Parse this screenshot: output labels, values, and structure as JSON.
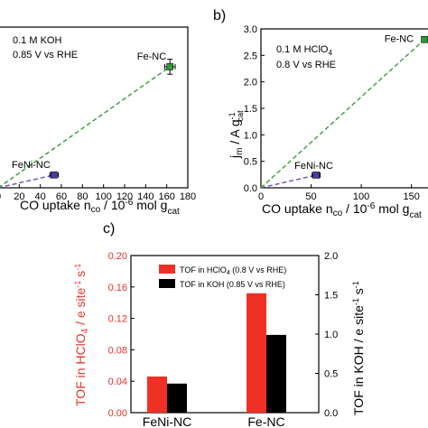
{
  "colors": {
    "trend_green": "#3a9a3a",
    "trend_purple": "#6a4fc0",
    "point_green": "#2f9a3a",
    "point_purple": "#4a3aa8",
    "bar_hclo4": "#ee3124",
    "bar_koh": "#000000",
    "left_axis_text": "#e8342a"
  },
  "chart_data": [
    {
      "id": "a",
      "type": "scatter",
      "panel_letter": "",
      "xlabel_main": "CO uptake n",
      "xlabel_sub": "co",
      "xlabel_unit": " / 10",
      "xlabel_exp": "-6",
      "xlabel_tail": " mol g",
      "xlabel_tail_sub": "cat",
      "ylabel": "",
      "xlim": [
        0,
        180
      ],
      "ylim": [
        0,
        3.0
      ],
      "xticks": [
        "0",
        "20",
        "40",
        "60",
        "80",
        "100",
        "120",
        "140",
        "160",
        "180"
      ],
      "xtick_values": [
        0,
        20,
        40,
        60,
        80,
        100,
        120,
        140,
        160,
        180
      ],
      "condition_line1": "0.1 M KOH",
      "condition_line2": "0.85 V vs RHE",
      "points": [
        {
          "label": "FeNi-NC",
          "x": 53,
          "y": 0.24,
          "xerr": 4,
          "color_key": "point_purple",
          "line_key": "trend_purple"
        },
        {
          "label": "Fe-NC",
          "x": 163,
          "y": 2.26,
          "xerr": 5,
          "yerr": 0.14,
          "color_key": "point_green",
          "line_key": "trend_green"
        }
      ]
    },
    {
      "id": "b",
      "type": "scatter",
      "panel_letter": "b)",
      "xlabel_main": "CO uptake n",
      "xlabel_sub": "co",
      "xlabel_unit": " / 10",
      "xlabel_exp": "-6",
      "xlabel_tail": " mol g",
      "xlabel_tail_sub": "cat",
      "ylabel_main": "j",
      "ylabel_sub": "m",
      "ylabel_unit": " / A g",
      "ylabel_unit_sup": "-1",
      "ylabel_unit_sub": "cat",
      "xlim": [
        0,
        180
      ],
      "ylim": [
        0,
        3.0
      ],
      "yticks": [
        "0.0",
        "0.5",
        "1.0",
        "1.5",
        "2.0",
        "2.5",
        "3.0"
      ],
      "ytick_values": [
        0,
        0.5,
        1.0,
        1.5,
        2.0,
        2.5,
        3.0
      ],
      "xticks": [
        "0",
        "50",
        "100",
        "150"
      ],
      "xtick_values": [
        0,
        50,
        100,
        150
      ],
      "condition_line1": "0.1 M HClO",
      "condition_line1_sub": "4",
      "condition_line2": "0.8 V vs RHE",
      "points": [
        {
          "label": "FeNi-NC",
          "x": 55,
          "y": 0.24,
          "xerr": 4,
          "color_key": "point_purple",
          "line_key": "trend_purple"
        },
        {
          "label": "Fe-NC",
          "x": 163,
          "y": 2.8,
          "color_key": "point_green",
          "line_key": "trend_green"
        }
      ]
    },
    {
      "id": "c",
      "type": "bar",
      "panel_letter": "c)",
      "categories": [
        "FeNi-NC",
        "Fe-NC"
      ],
      "ylabel_left": "TOF in HClO",
      "ylabel_left_sub": "4",
      "ylabel_left_tail": " / e site",
      "ylabel_left_sup": "-1",
      "ylabel_left_end": " s",
      "ylabel_left_end_sup": "-1",
      "ylabel_right": "TOF in KOH / e site",
      "ylabel_right_sup": "-1",
      "ylabel_right_end": " s",
      "ylabel_right_end_sup": "-1",
      "ylim_left": [
        0,
        0.2
      ],
      "ylim_right": [
        0,
        2.0
      ],
      "yticks_left": [
        "0.00",
        "0.04",
        "0.08",
        "0.12",
        "0.16",
        "0.20"
      ],
      "ytick_values_left": [
        0,
        0.04,
        0.08,
        0.12,
        0.16,
        0.2
      ],
      "yticks_right": [
        "0.0",
        "0.5",
        "1.0",
        "1.5",
        "2.0"
      ],
      "ytick_values_right": [
        0,
        0.5,
        1.0,
        1.5,
        2.0
      ],
      "series": [
        {
          "name": "TOF in HClO",
          "name_sub": "4",
          "name_tail": " (0.8 V vs RHE)",
          "axis": "left",
          "values": [
            0.046,
            0.152
          ],
          "color_key": "bar_hclo4"
        },
        {
          "name": "TOF in KOH (0.85 V vs RHE)",
          "axis": "right",
          "values": [
            0.37,
            0.99
          ],
          "color_key": "bar_koh"
        }
      ]
    }
  ]
}
